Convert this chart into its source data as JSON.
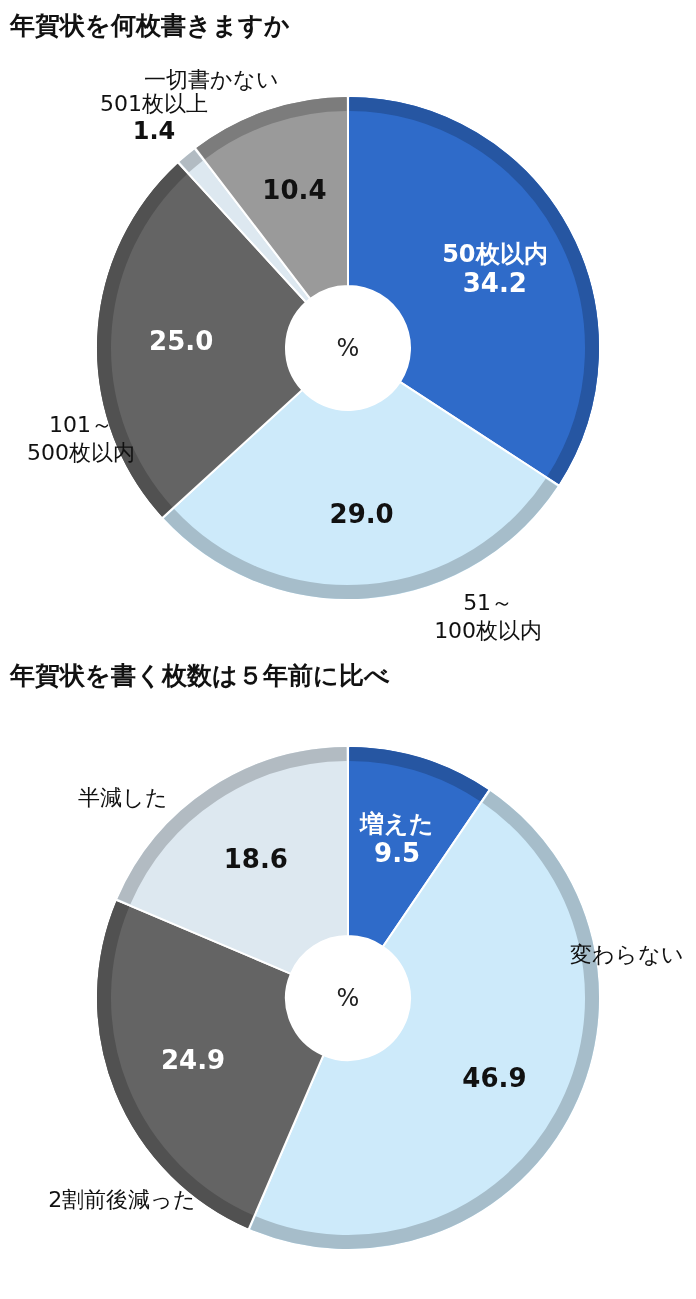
{
  "chart_data": [
    {
      "type": "donut",
      "title": "年賀状を何枚書きますか",
      "categories": [
        "50枚以内",
        "51～\n100枚以内",
        "101～\n500枚以内",
        "501枚以上",
        "一切書かない"
      ],
      "values": [
        34.2,
        29.0,
        25.0,
        1.4,
        10.4
      ],
      "colors": [
        "#2f6bc9",
        "#cdeafa",
        "#646464",
        "#dde8f0",
        "#9a9a9a"
      ],
      "value_labels": [
        "34.2",
        "29.0",
        "25.0",
        "1.4",
        "10.4"
      ],
      "annotations": [
        "%"
      ]
    },
    {
      "type": "donut",
      "title": "年賀状を書く枚数は５年前に比べ",
      "categories": [
        "増えた",
        "変わらない",
        "2割前後減った",
        "半減した"
      ],
      "values": [
        9.5,
        46.9,
        24.9,
        18.6
      ],
      "colors": [
        "#2f6bc9",
        "#cdeafa",
        "#646464",
        "#dde8f0"
      ],
      "value_labels": [
        "9.5",
        "46.9",
        "24.9",
        "18.6"
      ],
      "annotations": [
        "%"
      ]
    }
  ]
}
